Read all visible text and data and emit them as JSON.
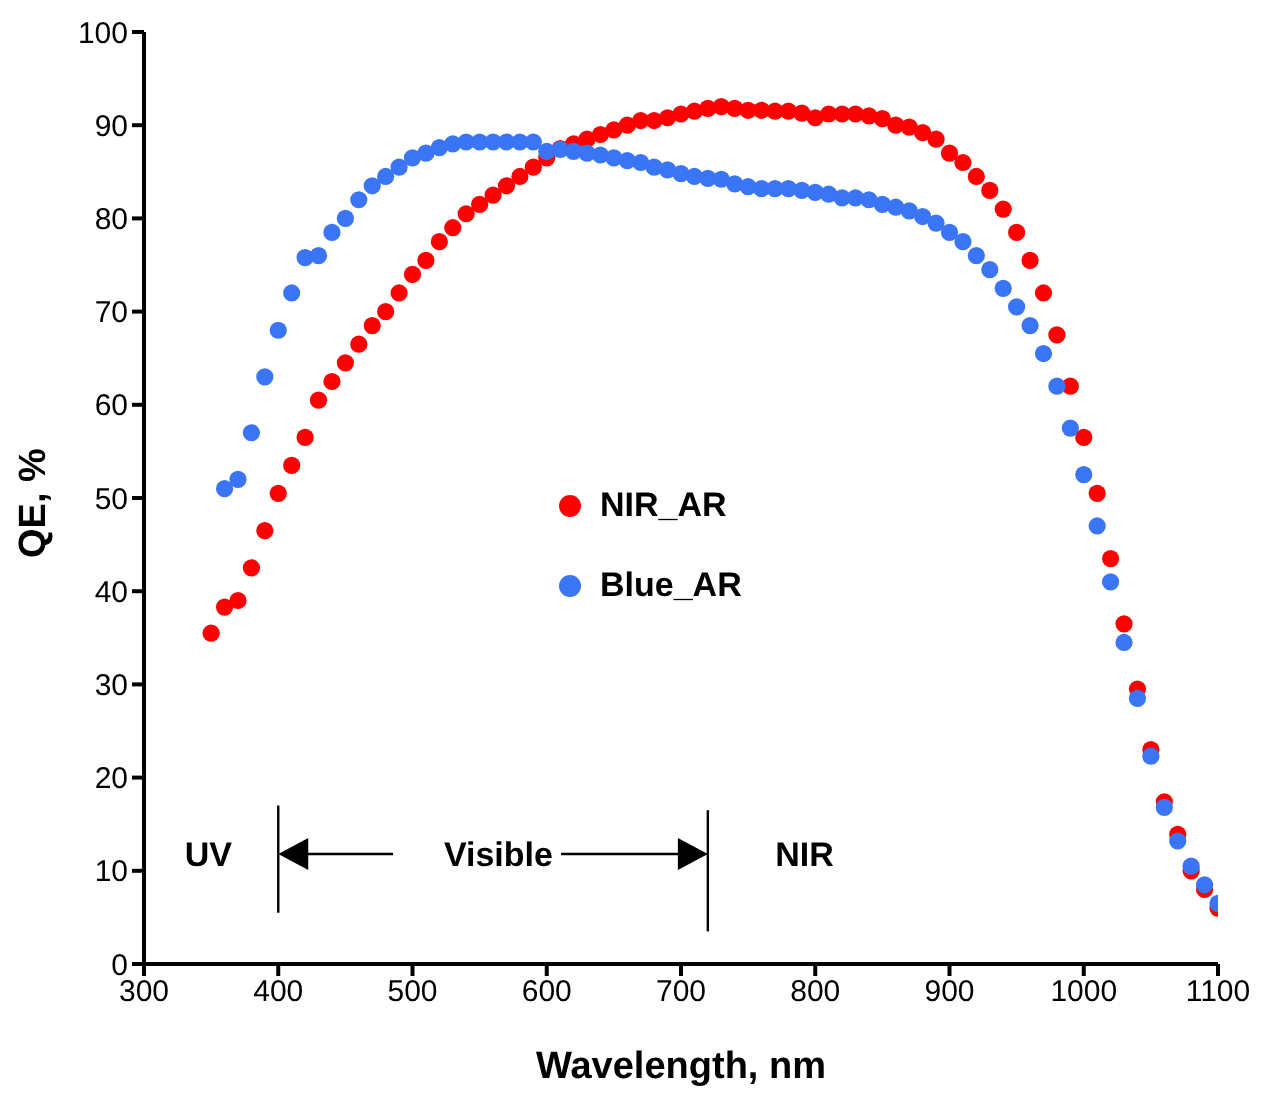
{
  "chart_data": {
    "type": "scatter",
    "xlabel": "Wavelength, nm",
    "ylabel": "QE, %",
    "xlim": [
      300,
      1100
    ],
    "xticks": [
      300,
      400,
      500,
      600,
      700,
      800,
      900,
      1000,
      1100
    ],
    "ylim": [
      0,
      100
    ],
    "yticks": [
      0,
      10,
      20,
      30,
      40,
      50,
      60,
      70,
      80,
      90,
      100
    ],
    "legend": "center",
    "marker": "circle",
    "series": [
      {
        "name": "NIR_AR",
        "color": "#ff0000",
        "x": [
          350,
          360,
          370,
          380,
          390,
          400,
          410,
          420,
          430,
          440,
          450,
          460,
          470,
          480,
          490,
          500,
          510,
          520,
          530,
          540,
          550,
          560,
          570,
          580,
          590,
          600,
          610,
          620,
          630,
          640,
          650,
          660,
          670,
          680,
          690,
          700,
          710,
          720,
          730,
          740,
          750,
          760,
          770,
          780,
          790,
          800,
          810,
          820,
          830,
          840,
          850,
          860,
          870,
          880,
          890,
          900,
          910,
          920,
          930,
          940,
          950,
          960,
          970,
          980,
          990,
          1000,
          1010,
          1020,
          1030,
          1040,
          1050,
          1060,
          1070,
          1080,
          1090,
          1100
        ],
        "values": [
          35.5,
          38.3,
          39,
          42.5,
          46.5,
          50.5,
          53.5,
          56.5,
          60.5,
          62.5,
          64.5,
          66.5,
          68.5,
          70,
          72,
          74,
          75.5,
          77.5,
          79,
          80.5,
          81.5,
          82.5,
          83.5,
          84.5,
          85.5,
          86.5,
          87.5,
          88,
          88.5,
          89,
          89.5,
          90,
          90.5,
          90.5,
          90.8,
          91.2,
          91.5,
          91.8,
          92,
          91.8,
          91.6,
          91.6,
          91.5,
          91.5,
          91.3,
          90.8,
          91.2,
          91.2,
          91.2,
          91,
          90.7,
          90,
          89.8,
          89.2,
          88.5,
          87,
          86,
          84.5,
          83,
          81,
          78.5,
          75.5,
          72,
          67.5,
          62,
          56.5,
          50.5,
          43.5,
          36.5,
          29.5,
          23,
          17.4,
          13.9,
          10,
          8,
          6
        ]
      },
      {
        "name": "Blue_AR",
        "color": "#3a75f5",
        "x": [
          360,
          370,
          380,
          390,
          400,
          410,
          420,
          430,
          440,
          450,
          460,
          470,
          480,
          490,
          500,
          510,
          520,
          530,
          540,
          550,
          560,
          570,
          580,
          590,
          600,
          610,
          620,
          630,
          640,
          650,
          660,
          670,
          680,
          690,
          700,
          710,
          720,
          730,
          740,
          750,
          760,
          770,
          780,
          790,
          800,
          810,
          820,
          830,
          840,
          850,
          860,
          870,
          880,
          890,
          900,
          910,
          920,
          930,
          940,
          950,
          960,
          970,
          980,
          990,
          1000,
          1010,
          1020,
          1030,
          1040,
          1050,
          1060,
          1070,
          1080,
          1090,
          1100
        ],
        "values": [
          51,
          52,
          57,
          63,
          68,
          72,
          75.8,
          76,
          78.5,
          80,
          82,
          83.5,
          84.5,
          85.5,
          86.5,
          87,
          87.6,
          88,
          88.2,
          88.2,
          88.2,
          88.2,
          88.2,
          88.2,
          87.2,
          87.4,
          87.2,
          87,
          86.8,
          86.5,
          86.2,
          86,
          85.5,
          85.2,
          84.8,
          84.5,
          84.3,
          84.2,
          83.7,
          83.4,
          83.2,
          83.2,
          83.2,
          83,
          82.8,
          82.6,
          82.2,
          82.2,
          82,
          81.5,
          81.2,
          80.8,
          80.2,
          79.5,
          78.5,
          77.5,
          76,
          74.5,
          72.5,
          70.5,
          68.5,
          65.5,
          62,
          57.5,
          52.5,
          47,
          41,
          34.5,
          28.5,
          22.3,
          16.8,
          13.2,
          10.5,
          8.5,
          6.5
        ]
      }
    ],
    "ref_lines": [
      {
        "axis": "x",
        "value": 400,
        "label": null
      },
      {
        "axis": "x",
        "value": 720,
        "label": null
      }
    ],
    "annotations": [
      "UV",
      "Visible",
      "NIR"
    ]
  }
}
